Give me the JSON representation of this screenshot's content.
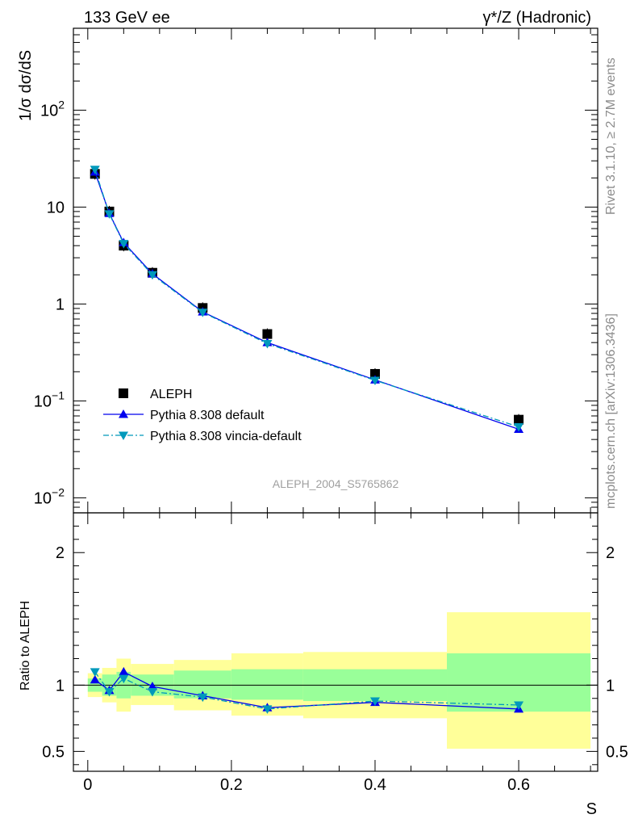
{
  "header": {
    "left": "133 GeV ee",
    "right": "γ*/Z (Hadronic)"
  },
  "side_text": {
    "rivet": "Rivet 3.1.10, ≥ 2.7M events",
    "mcplots": "mcplots.cern.ch [arXiv:1306.3436]"
  },
  "analysis_id": "ALEPH_2004_S5765862",
  "chart_data": [
    {
      "type": "scatter",
      "panel": "main",
      "ylabel": "1/σ  dσ/dS",
      "yscale": "log",
      "ylim": [
        0.007,
        700
      ],
      "xlim": [
        -0.02,
        0.71
      ],
      "y_tick_labels": [
        "10^-2",
        "10^-1",
        "1",
        "10",
        "10^2"
      ],
      "legend_position": "lower-left",
      "series": [
        {
          "name": "ALEPH",
          "color": "#000000",
          "marker": "square",
          "x": [
            0.01,
            0.03,
            0.05,
            0.09,
            0.16,
            0.25,
            0.4,
            0.6
          ],
          "y": [
            22,
            9.0,
            4.0,
            2.1,
            0.91,
            0.49,
            0.19,
            0.064
          ]
        },
        {
          "name": "Pythia 8.308 default",
          "color": "#0000ee",
          "marker": "triangle-up",
          "line": "solid",
          "x": [
            0.01,
            0.03,
            0.05,
            0.09,
            0.16,
            0.25,
            0.4,
            0.6
          ],
          "y": [
            23,
            8.6,
            4.3,
            2.05,
            0.83,
            0.4,
            0.165,
            0.051
          ]
        },
        {
          "name": "Pythia 8.308 vincia-default",
          "color": "#0099bb",
          "marker": "triangle-down",
          "line": "dashdot",
          "x": [
            0.01,
            0.03,
            0.05,
            0.09,
            0.16,
            0.25,
            0.4,
            0.6
          ],
          "y": [
            24.5,
            8.5,
            4.2,
            2.0,
            0.82,
            0.39,
            0.163,
            0.054
          ]
        }
      ]
    },
    {
      "type": "scatter",
      "panel": "ratio",
      "ylabel": "Ratio to ALEPH",
      "xlabel": "S",
      "ylim": [
        0.35,
        2.3
      ],
      "xlim": [
        -0.02,
        0.71
      ],
      "x_tick_labels": [
        "0",
        "0.2",
        "0.4",
        "0.6"
      ],
      "y_tick_labels": [
        "0.5",
        "1",
        "2"
      ],
      "reference_line": 1,
      "bands": [
        {
          "x0": 0.0,
          "x1": 0.02,
          "y_lo": 0.91,
          "y_hi": 1.09,
          "y2_lo": 0.95,
          "y2_hi": 1.05
        },
        {
          "x0": 0.02,
          "x1": 0.04,
          "y_lo": 0.87,
          "y_hi": 1.13,
          "y2_lo": 0.92,
          "y2_hi": 1.08
        },
        {
          "x0": 0.04,
          "x1": 0.06,
          "y_lo": 0.8,
          "y_hi": 1.2,
          "y2_lo": 0.9,
          "y2_hi": 1.1
        },
        {
          "x0": 0.06,
          "x1": 0.12,
          "y_lo": 0.85,
          "y_hi": 1.16,
          "y2_lo": 0.92,
          "y2_hi": 1.08
        },
        {
          "x0": 0.12,
          "x1": 0.2,
          "y_lo": 0.81,
          "y_hi": 1.19,
          "y2_lo": 0.9,
          "y2_hi": 1.11
        },
        {
          "x0": 0.2,
          "x1": 0.3,
          "y_lo": 0.77,
          "y_hi": 1.24,
          "y2_lo": 0.89,
          "y2_hi": 1.12
        },
        {
          "x0": 0.3,
          "x1": 0.5,
          "y_lo": 0.75,
          "y_hi": 1.25,
          "y2_lo": 0.88,
          "y2_hi": 1.12
        },
        {
          "x0": 0.5,
          "x1": 0.7,
          "y_lo": 0.52,
          "y_hi": 1.55,
          "y2_lo": 0.8,
          "y2_hi": 1.24
        }
      ],
      "series": [
        {
          "name": "Pythia 8.308 default",
          "color": "#0000ee",
          "marker": "triangle-up",
          "line": "solid",
          "x": [
            0.01,
            0.03,
            0.05,
            0.09,
            0.16,
            0.25,
            0.4,
            0.6
          ],
          "y": [
            1.04,
            0.96,
            1.1,
            0.99,
            0.92,
            0.83,
            0.87,
            0.82
          ]
        },
        {
          "name": "Pythia 8.308 vincia-default",
          "color": "#0099bb",
          "marker": "triangle-down",
          "line": "dashdot",
          "x": [
            0.01,
            0.03,
            0.05,
            0.09,
            0.16,
            0.25,
            0.4,
            0.6
          ],
          "y": [
            1.1,
            0.95,
            1.05,
            0.95,
            0.91,
            0.82,
            0.88,
            0.85
          ]
        }
      ]
    }
  ]
}
